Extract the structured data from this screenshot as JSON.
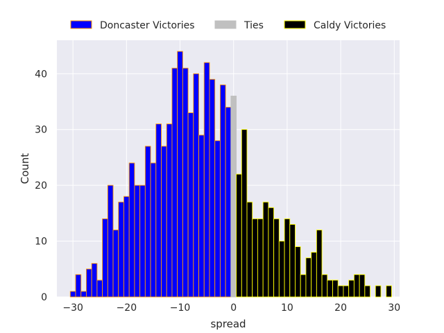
{
  "chart_data": {
    "type": "bar",
    "title": "",
    "xlabel": "spread",
    "ylabel": "Count",
    "xlim": [
      -33,
      31
    ],
    "ylim": [
      0,
      46
    ],
    "xticks": [
      -30,
      -20,
      -10,
      0,
      10,
      20,
      30
    ],
    "yticks": [
      0,
      10,
      20,
      30,
      40
    ],
    "grid": true,
    "legend_position": "top-center, above plot",
    "bin_width": 1,
    "series": [
      {
        "name": "Doncaster Victories",
        "color": "#0000ff",
        "edge_color": "#ff9900",
        "bins": [
          {
            "x": -30,
            "count": 1
          },
          {
            "x": -29,
            "count": 4
          },
          {
            "x": -28,
            "count": 1
          },
          {
            "x": -27,
            "count": 5
          },
          {
            "x": -26,
            "count": 6
          },
          {
            "x": -25,
            "count": 3
          },
          {
            "x": -24,
            "count": 14
          },
          {
            "x": -23,
            "count": 20
          },
          {
            "x": -22,
            "count": 12
          },
          {
            "x": -21,
            "count": 17
          },
          {
            "x": -20,
            "count": 18
          },
          {
            "x": -19,
            "count": 24
          },
          {
            "x": -18,
            "count": 20
          },
          {
            "x": -17,
            "count": 20
          },
          {
            "x": -16,
            "count": 27
          },
          {
            "x": -15,
            "count": 24
          },
          {
            "x": -14,
            "count": 31
          },
          {
            "x": -13,
            "count": 27
          },
          {
            "x": -12,
            "count": 31
          },
          {
            "x": -11,
            "count": 41
          },
          {
            "x": -10,
            "count": 44
          },
          {
            "x": -9,
            "count": 41
          },
          {
            "x": -8,
            "count": 33
          },
          {
            "x": -7,
            "count": 40
          },
          {
            "x": -6,
            "count": 29
          },
          {
            "x": -5,
            "count": 42
          },
          {
            "x": -4,
            "count": 39
          },
          {
            "x": -3,
            "count": 28
          },
          {
            "x": -2,
            "count": 38
          },
          {
            "x": -1,
            "count": 34
          }
        ]
      },
      {
        "name": "Ties",
        "color": "#c0c0c0",
        "edge_color": "#c0c0c0",
        "bins": [
          {
            "x": 0,
            "count": 36
          }
        ]
      },
      {
        "name": "Caldy Victories",
        "color": "#000000",
        "edge_color": "#ffff00",
        "bins": [
          {
            "x": 1,
            "count": 22
          },
          {
            "x": 2,
            "count": 30
          },
          {
            "x": 3,
            "count": 17
          },
          {
            "x": 4,
            "count": 14
          },
          {
            "x": 5,
            "count": 14
          },
          {
            "x": 6,
            "count": 17
          },
          {
            "x": 7,
            "count": 16
          },
          {
            "x": 8,
            "count": 14
          },
          {
            "x": 9,
            "count": 10
          },
          {
            "x": 10,
            "count": 14
          },
          {
            "x": 11,
            "count": 13
          },
          {
            "x": 12,
            "count": 9
          },
          {
            "x": 13,
            "count": 4
          },
          {
            "x": 14,
            "count": 7
          },
          {
            "x": 15,
            "count": 8
          },
          {
            "x": 16,
            "count": 12
          },
          {
            "x": 17,
            "count": 4
          },
          {
            "x": 18,
            "count": 3
          },
          {
            "x": 19,
            "count": 3
          },
          {
            "x": 20,
            "count": 2
          },
          {
            "x": 21,
            "count": 2
          },
          {
            "x": 22,
            "count": 3
          },
          {
            "x": 23,
            "count": 4
          },
          {
            "x": 24,
            "count": 4
          },
          {
            "x": 25,
            "count": 2
          },
          {
            "x": 26,
            "count": 0
          },
          {
            "x": 27,
            "count": 2
          },
          {
            "x": 28,
            "count": 0
          },
          {
            "x": 29,
            "count": 2
          }
        ]
      }
    ]
  }
}
